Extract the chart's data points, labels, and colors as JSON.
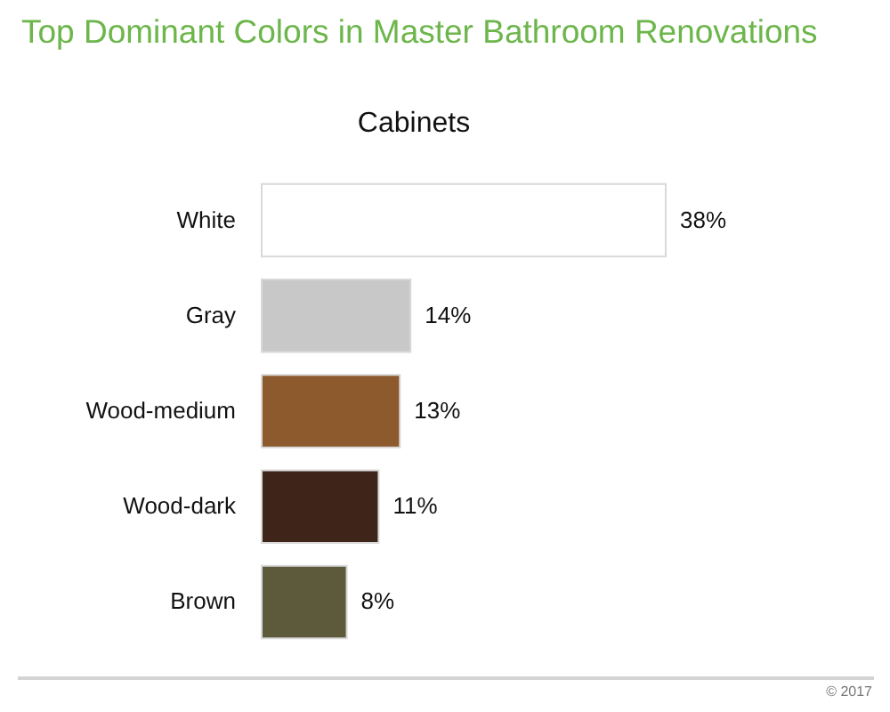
{
  "chart_data": {
    "type": "bar",
    "orientation": "horizontal",
    "title": "Top Dominant Colors in Master Bathroom Renovations",
    "subtitle": "Cabinets",
    "categories": [
      "White",
      "Gray",
      "Wood-medium",
      "Wood-dark",
      "Brown"
    ],
    "values": [
      38,
      14,
      13,
      11,
      8
    ],
    "value_labels": [
      "38%",
      "14%",
      "13%",
      "11%",
      "8%"
    ],
    "colors": [
      "#ffffff",
      "#c8c8c8",
      "#8c5a2c",
      "#3f2519",
      "#5d5a3b"
    ],
    "annotations": [
      "© 2017"
    ]
  }
}
